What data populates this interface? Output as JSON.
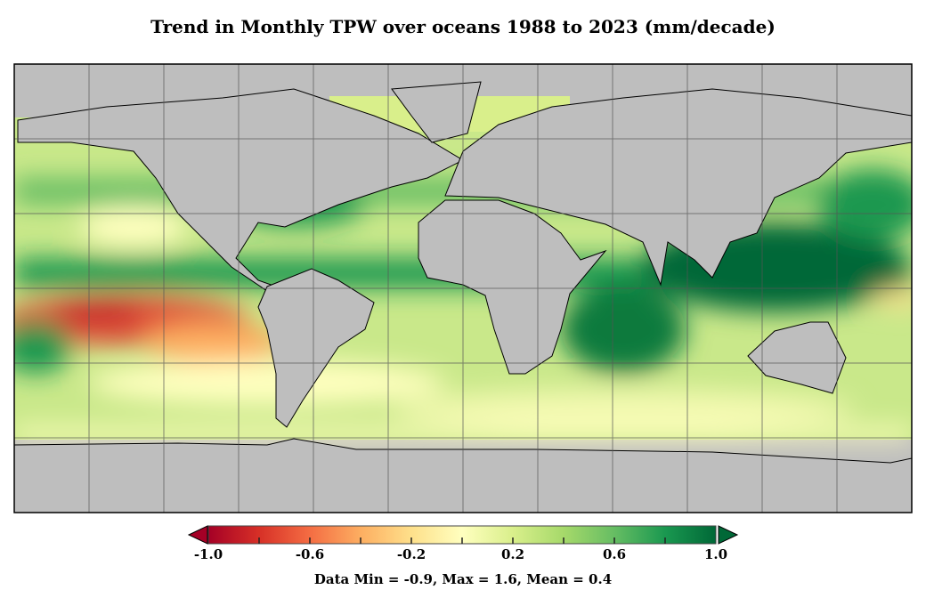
{
  "title": "Trend in Monthly TPW over oceans 1988 to 2023 (mm/decade)",
  "colorbar": {
    "min": -1.0,
    "max": 1.0,
    "tick_labels": [
      "-1.0",
      "-0.6",
      "-0.2",
      "0.2",
      "0.6",
      "1.0"
    ],
    "tick_values": [
      -1.0,
      -0.6,
      -0.2,
      0.2,
      0.6,
      1.0
    ],
    "colors": [
      "#a50026",
      "#d73027",
      "#f46d43",
      "#fdae61",
      "#fee08b",
      "#ffffbf",
      "#d9ef8b",
      "#a6d96a",
      "#66bd63",
      "#1a9850",
      "#006837"
    ]
  },
  "stats": "Data Min = -0.9, Max = 1.6, Mean = 0.4",
  "land_color": "#bebebe"
}
